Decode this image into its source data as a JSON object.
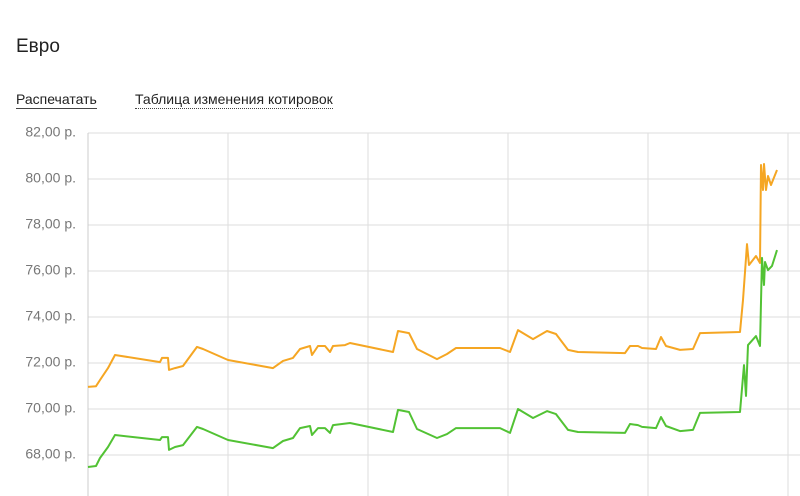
{
  "header": {
    "title": "Евро"
  },
  "links": [
    "Распечатать",
    "Таблица изменения котировок"
  ],
  "chart_data": {
    "type": "line",
    "ylim": [
      67,
      82
    ],
    "yticks": [
      {
        "value": 68,
        "label": "68,00 р."
      },
      {
        "value": 70,
        "label": "70,00 р."
      },
      {
        "value": 72,
        "label": "72,00 р."
      },
      {
        "value": 74,
        "label": "74,00 р."
      },
      {
        "value": 76,
        "label": "76,00 р."
      },
      {
        "value": 78,
        "label": "78,00 р."
      },
      {
        "value": 80,
        "label": "80,00 р."
      },
      {
        "value": 82,
        "label": "82,00 р."
      }
    ],
    "xlim": [
      0,
      700
    ],
    "grid": true,
    "series": [
      {
        "color": "#f5a623",
        "x": [
          0,
          8,
          12,
          20,
          27,
          72,
          74,
          80,
          81,
          87,
          95,
          109,
          115,
          140,
          185,
          195,
          205,
          212,
          222,
          224,
          230,
          237,
          242,
          245,
          257,
          262,
          305,
          310,
          321,
          329,
          349,
          359,
          368,
          412,
          422,
          430,
          445,
          459,
          468,
          480,
          490,
          537,
          542,
          550,
          554,
          568,
          573,
          578,
          592,
          605,
          612,
          652,
          655,
          659,
          661,
          668,
          672,
          673,
          675,
          676,
          678,
          680,
          683,
          689
        ],
        "values": [
          70.96,
          70.99,
          71.26,
          71.78,
          72.35,
          72.04,
          72.22,
          72.22,
          71.7,
          71.78,
          71.87,
          72.7,
          72.61,
          72.13,
          71.78,
          72.09,
          72.22,
          72.61,
          72.74,
          72.35,
          72.74,
          72.74,
          72.48,
          72.74,
          72.78,
          72.87,
          72.48,
          73.39,
          73.3,
          72.61,
          72.17,
          72.39,
          72.65,
          72.65,
          72.48,
          73.43,
          73.04,
          73.39,
          73.26,
          72.57,
          72.48,
          72.43,
          72.74,
          72.74,
          72.65,
          72.61,
          73.13,
          72.74,
          72.57,
          72.61,
          73.3,
          73.35,
          74.74,
          77.17,
          76.26,
          76.65,
          76.35,
          80.61,
          79.52,
          80.65,
          79.52,
          80.13,
          79.74,
          80.39
        ]
      },
      {
        "color": "#52c234",
        "x": [
          0,
          8,
          12,
          20,
          27,
          72,
          74,
          80,
          81,
          87,
          95,
          109,
          115,
          140,
          185,
          195,
          205,
          212,
          222,
          224,
          230,
          237,
          242,
          245,
          262,
          305,
          310,
          321,
          329,
          349,
          359,
          368,
          412,
          422,
          430,
          445,
          459,
          468,
          480,
          490,
          537,
          542,
          550,
          554,
          568,
          573,
          578,
          592,
          605,
          612,
          652,
          656,
          658,
          660,
          668,
          672,
          674,
          676,
          677,
          680,
          684,
          689
        ],
        "values": [
          67.48,
          67.52,
          67.87,
          68.35,
          68.87,
          68.65,
          68.78,
          68.78,
          68.22,
          68.35,
          68.43,
          69.22,
          69.13,
          68.65,
          68.3,
          68.61,
          68.74,
          69.17,
          69.26,
          68.87,
          69.17,
          69.17,
          68.96,
          69.3,
          69.39,
          69.0,
          69.96,
          69.87,
          69.13,
          68.74,
          68.91,
          69.17,
          69.17,
          68.96,
          70.0,
          69.61,
          69.91,
          69.78,
          69.09,
          69.0,
          68.96,
          69.35,
          69.3,
          69.22,
          69.17,
          69.65,
          69.26,
          69.04,
          69.09,
          69.83,
          69.87,
          71.91,
          70.57,
          72.78,
          73.17,
          72.74,
          76.57,
          75.39,
          76.39,
          76.04,
          76.22,
          76.91
        ]
      }
    ]
  }
}
